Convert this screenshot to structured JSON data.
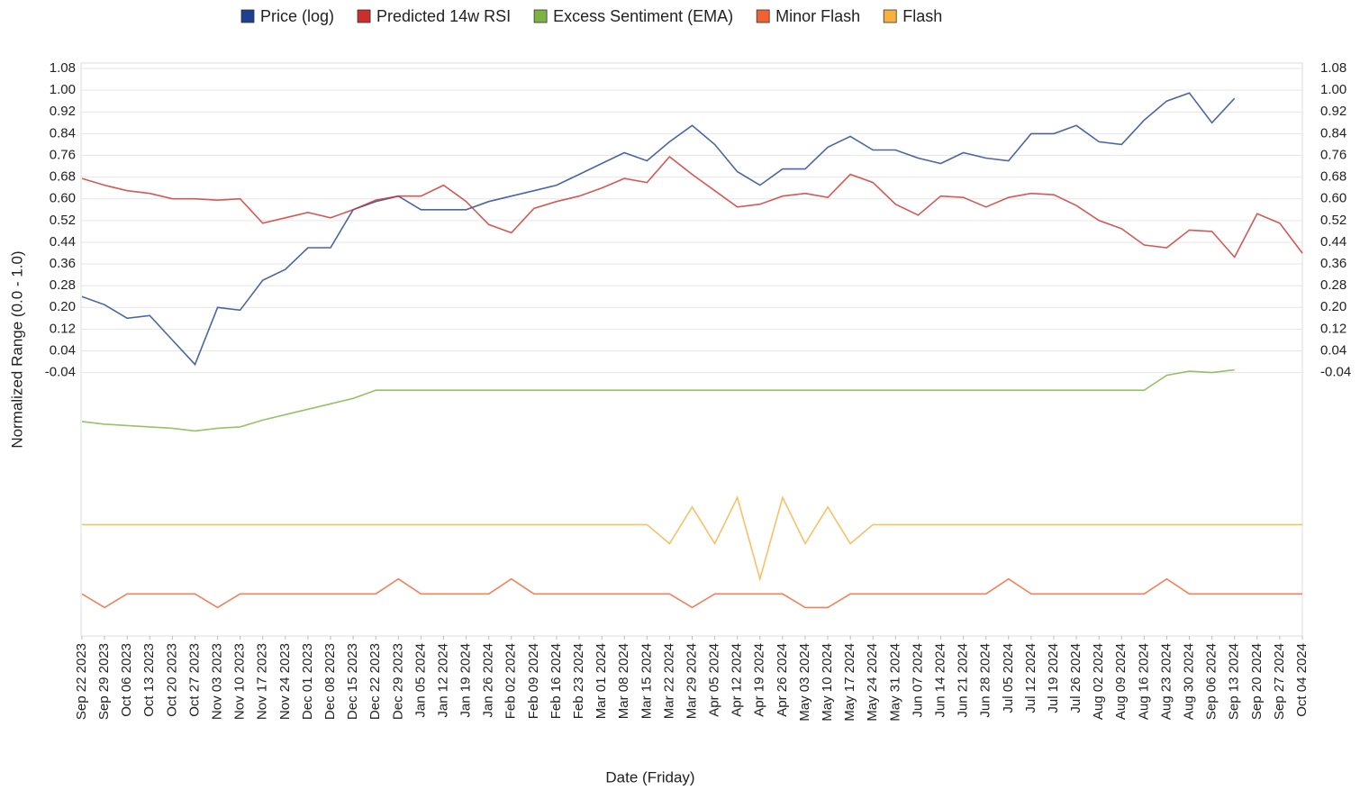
{
  "chart_data": {
    "type": "line",
    "x_label": "Date (Friday)",
    "y_label": "Normalized Range (0.0 - 1.0)",
    "categories": [
      "Sep 22 2023",
      "Sep 29 2023",
      "Oct 06 2023",
      "Oct 13 2023",
      "Oct 20 2023",
      "Oct 27 2023",
      "Nov 03 2023",
      "Nov 10 2023",
      "Nov 17 2023",
      "Nov 24 2023",
      "Dec 01 2023",
      "Dec 08 2023",
      "Dec 15 2023",
      "Dec 22 2023",
      "Dec 29 2023",
      "Jan 05 2024",
      "Jan 12 2024",
      "Jan 19 2024",
      "Jan 26 2024",
      "Feb 02 2024",
      "Feb 09 2024",
      "Feb 16 2024",
      "Feb 23 2024",
      "Mar 01 2024",
      "Mar 08 2024",
      "Mar 15 2024",
      "Mar 22 2024",
      "Mar 29 2024",
      "Apr 05 2024",
      "Apr 12 2024",
      "Apr 19 2024",
      "Apr 26 2024",
      "May 03 2024",
      "May 10 2024",
      "May 17 2024",
      "May 24 2024",
      "May 31 2024",
      "Jun 07 2024",
      "Jun 14 2024",
      "Jun 21 2024",
      "Jun 28 2024",
      "Jul 05 2024",
      "Jul 12 2024",
      "Jul 19 2024",
      "Jul 26 2024",
      "Aug 02 2024",
      "Aug 09 2024",
      "Aug 16 2024",
      "Aug 23 2024",
      "Aug 30 2024",
      "Sep 06 2024",
      "Sep 13 2024",
      "Sep 20 2024",
      "Sep 27 2024",
      "Oct 04 2024"
    ],
    "series": [
      {
        "name": "Price (log)",
        "color": "#1f3f8f",
        "values": [
          0.24,
          0.21,
          0.16,
          0.17,
          0.08,
          -0.01,
          0.2,
          0.19,
          0.3,
          0.34,
          0.42,
          0.42,
          0.56,
          0.59,
          0.61,
          0.56,
          0.56,
          0.56,
          0.59,
          0.61,
          0.63,
          0.65,
          0.69,
          0.73,
          0.77,
          0.74,
          0.81,
          0.87,
          0.8,
          0.7,
          0.65,
          0.71,
          0.71,
          0.79,
          0.83,
          0.78,
          0.78,
          0.75,
          0.73,
          0.77,
          0.75,
          0.74,
          0.84,
          0.84,
          0.87,
          0.81,
          0.8,
          0.89,
          0.96,
          0.99,
          0.88,
          0.97,
          null,
          null,
          null
        ]
      },
      {
        "name": "Predicted 14w RSI",
        "color": "#c9302c",
        "values": [
          0.675,
          0.65,
          0.63,
          0.62,
          0.6,
          0.6,
          0.595,
          0.6,
          0.51,
          0.53,
          0.55,
          0.53,
          0.56,
          0.595,
          0.61,
          0.61,
          0.65,
          0.59,
          0.505,
          0.475,
          0.565,
          0.59,
          0.61,
          0.64,
          0.675,
          0.66,
          0.755,
          0.69,
          0.63,
          0.57,
          0.58,
          0.61,
          0.62,
          0.605,
          0.69,
          0.66,
          0.58,
          0.54,
          0.61,
          0.605,
          0.57,
          0.605,
          0.62,
          0.615,
          0.575,
          0.52,
          0.49,
          0.43,
          0.42,
          0.485,
          0.48,
          0.385,
          0.545,
          0.51,
          0.4
        ]
      },
      {
        "name": "Excess Sentiment (EMA)",
        "color": "#7cb342",
        "values": [
          -0.22,
          -0.23,
          -0.235,
          -0.24,
          -0.245,
          -0.255,
          -0.245,
          -0.24,
          -0.215,
          -0.195,
          -0.175,
          -0.155,
          -0.135,
          -0.105,
          -0.105,
          -0.105,
          -0.105,
          -0.105,
          -0.105,
          -0.105,
          -0.105,
          -0.105,
          -0.105,
          -0.105,
          -0.105,
          -0.105,
          -0.105,
          -0.105,
          -0.105,
          -0.105,
          -0.105,
          -0.105,
          -0.105,
          -0.105,
          -0.105,
          -0.105,
          -0.105,
          -0.105,
          -0.105,
          -0.105,
          -0.105,
          -0.105,
          -0.105,
          -0.105,
          -0.105,
          -0.105,
          -0.105,
          -0.105,
          -0.05,
          -0.035,
          -0.04,
          -0.03,
          null,
          null,
          null
        ]
      },
      {
        "name": "Minor Flash",
        "color": "#f0622f",
        "values": [
          -0.855,
          -0.905,
          -0.855,
          -0.855,
          -0.855,
          -0.855,
          -0.905,
          -0.855,
          -0.855,
          -0.855,
          -0.855,
          -0.855,
          -0.855,
          -0.855,
          -0.8,
          -0.855,
          -0.855,
          -0.855,
          -0.855,
          -0.8,
          -0.855,
          -0.855,
          -0.855,
          -0.855,
          -0.855,
          -0.855,
          -0.855,
          -0.905,
          -0.855,
          -0.855,
          -0.855,
          -0.855,
          -0.905,
          -0.905,
          -0.855,
          -0.855,
          -0.855,
          -0.855,
          -0.855,
          -0.855,
          -0.855,
          -0.8,
          -0.855,
          -0.855,
          -0.855,
          -0.855,
          -0.855,
          -0.855,
          -0.8,
          -0.855,
          -0.855,
          -0.855,
          -0.855,
          -0.855,
          -0.855
        ]
      },
      {
        "name": "Flash",
        "color": "#f7b13f",
        "values": [
          -0.6,
          -0.6,
          -0.6,
          -0.6,
          -0.6,
          -0.6,
          -0.6,
          -0.6,
          -0.6,
          -0.6,
          -0.6,
          -0.6,
          -0.6,
          -0.6,
          -0.6,
          -0.6,
          -0.6,
          -0.6,
          -0.6,
          -0.6,
          -0.6,
          -0.6,
          -0.6,
          -0.6,
          -0.6,
          -0.6,
          -0.67,
          -0.535,
          -0.67,
          -0.5,
          -0.8,
          -0.5,
          -0.67,
          -0.535,
          -0.67,
          -0.6,
          -0.6,
          -0.6,
          -0.6,
          -0.6,
          -0.6,
          -0.6,
          -0.6,
          -0.6,
          -0.6,
          -0.6,
          -0.6,
          -0.6,
          -0.6,
          -0.6,
          -0.6,
          -0.6,
          -0.6,
          -0.6,
          -0.6
        ]
      }
    ],
    "ylim": [
      -1.01,
      1.1
    ],
    "yticks": [
      {
        "value": 1.08,
        "label": "1.08"
      },
      {
        "value": 1.0,
        "label": "1.00"
      },
      {
        "value": 0.92,
        "label": "0.92"
      },
      {
        "value": 0.84,
        "label": "0.84"
      },
      {
        "value": 0.76,
        "label": "0.76"
      },
      {
        "value": 0.68,
        "label": "0.68"
      },
      {
        "value": 0.6,
        "label": "0.60"
      },
      {
        "value": 0.52,
        "label": "0.52"
      },
      {
        "value": 0.44,
        "label": "0.44"
      },
      {
        "value": 0.36,
        "label": "0.36"
      },
      {
        "value": 0.28,
        "label": "0.28"
      },
      {
        "value": 0.2,
        "label": "0.20"
      },
      {
        "value": 0.12,
        "label": "0.12"
      },
      {
        "value": 0.04,
        "label": "0.04"
      },
      {
        "value": -0.04,
        "label": "-0.04"
      }
    ],
    "grid": true,
    "legend": "top"
  }
}
